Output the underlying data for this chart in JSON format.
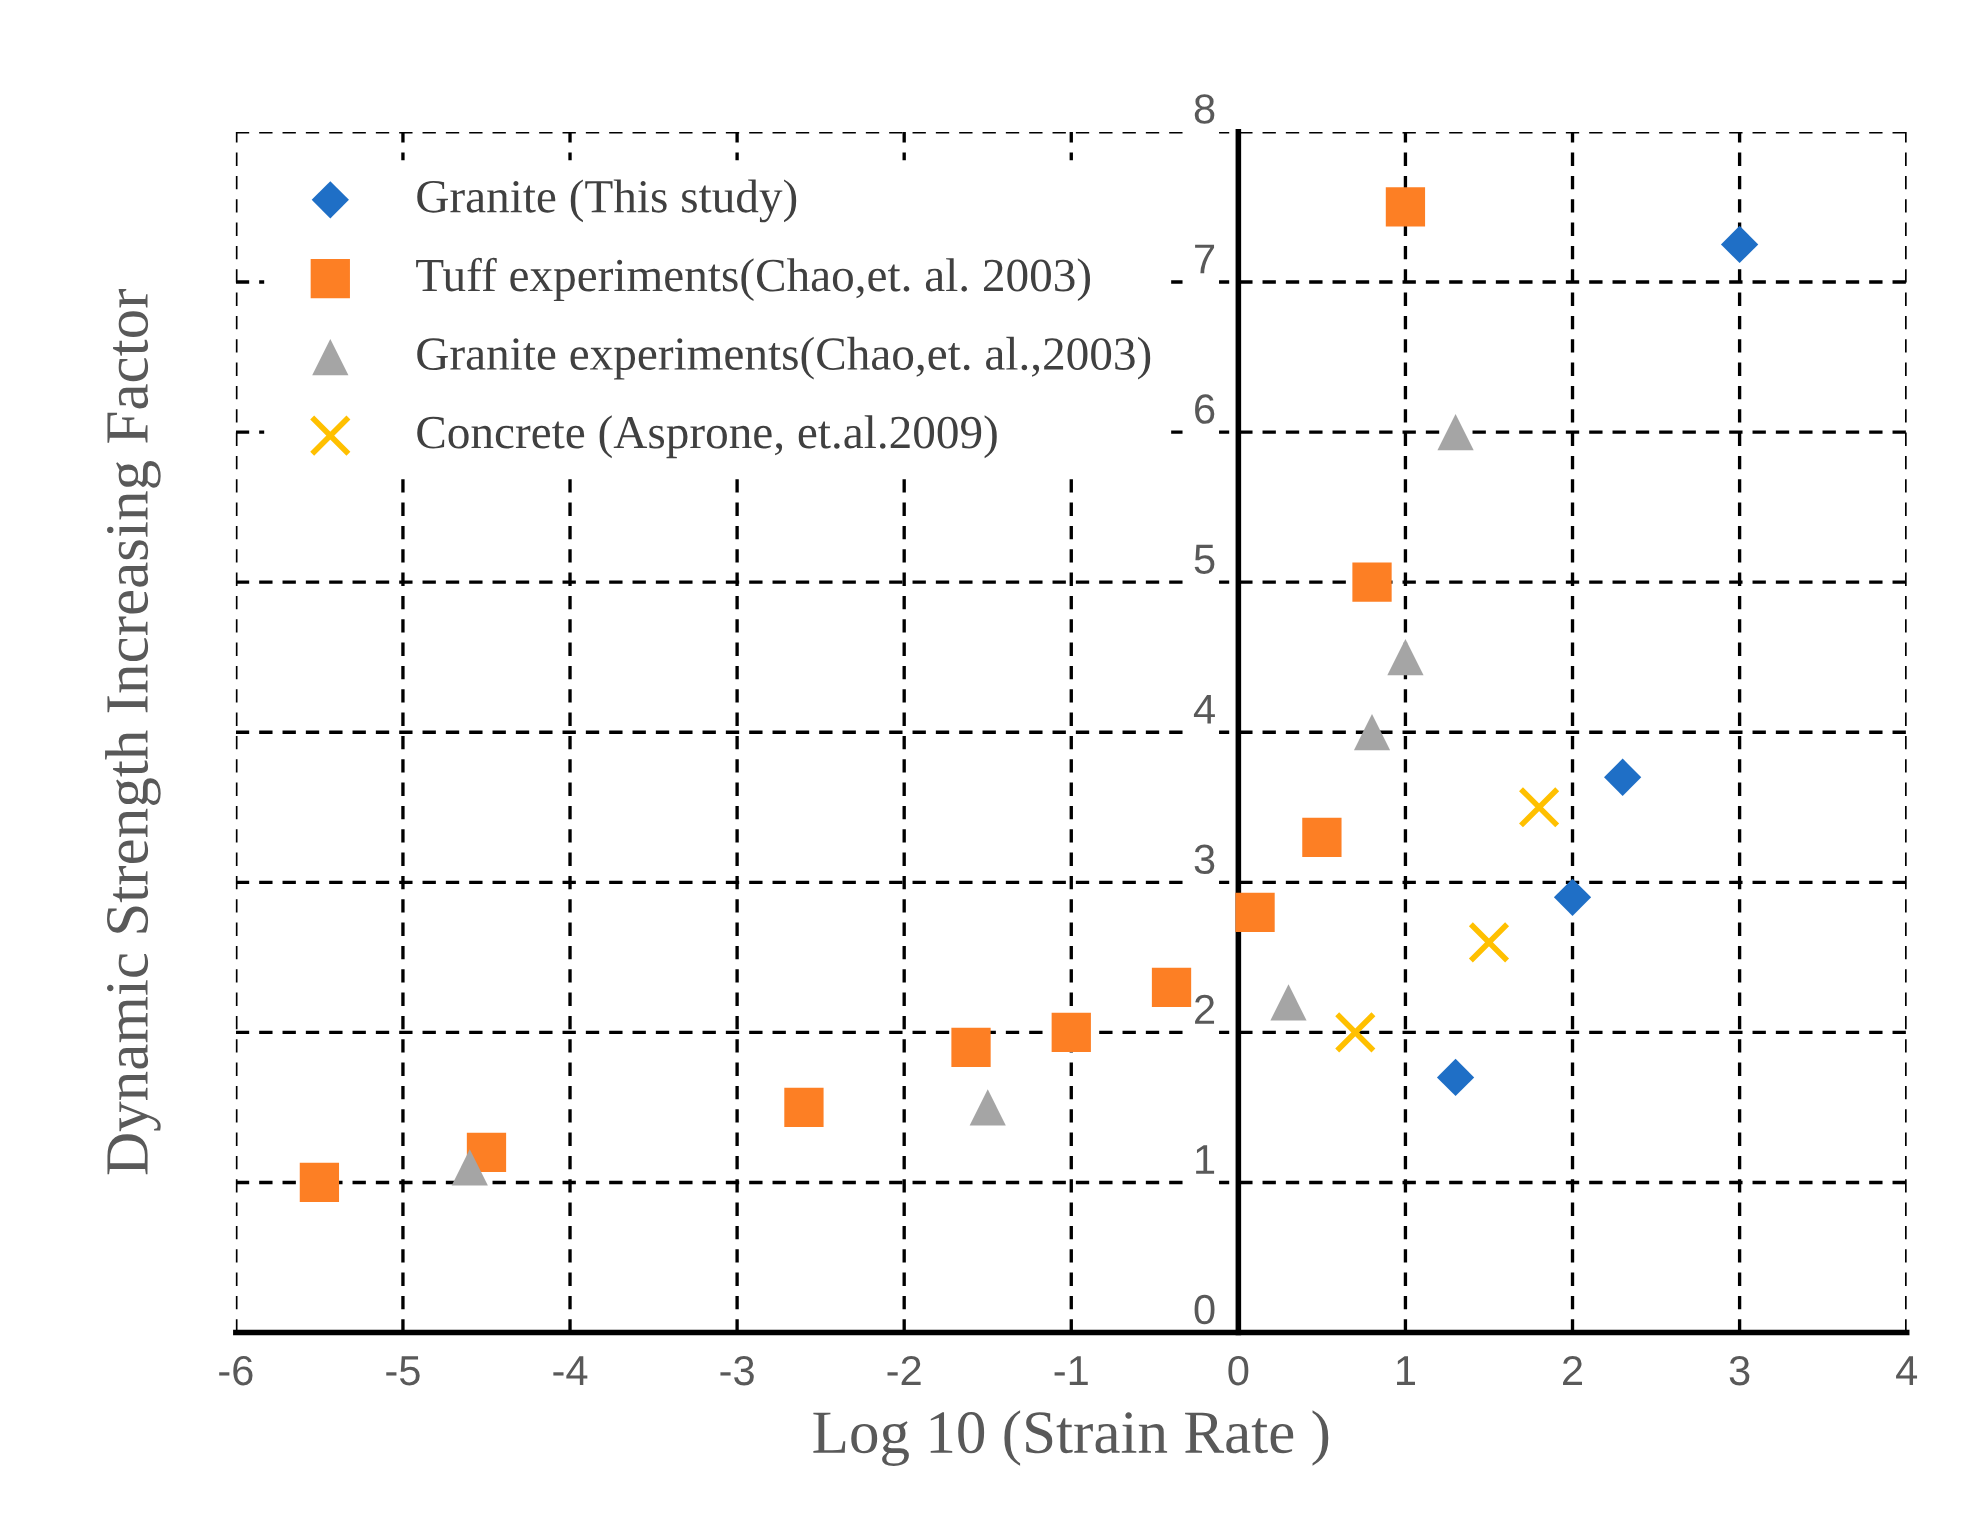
{
  "chart_data": {
    "type": "scatter",
    "xlabel": "Log 10 (Strain Rate )",
    "ylabel": "Dynamic Strength Increasing Factor",
    "xlim": [
      -6,
      4
    ],
    "xticks": [
      -6,
      -5,
      -4,
      -3,
      -2,
      -1,
      0,
      1,
      2,
      3,
      4
    ],
    "ylim": [
      0,
      8
    ],
    "yticks": [
      0,
      1,
      2,
      3,
      4,
      5,
      6,
      7,
      8
    ],
    "grid": true,
    "legend": "top left",
    "series": [
      {
        "name": "Granite (This study)",
        "color": "#1f6fc6",
        "marker": "diamond",
        "x": [
          3.0,
          2.3,
          2.0,
          1.3
        ],
        "values": [
          7.25,
          3.7,
          2.9,
          1.7
        ]
      },
      {
        "name": "Tuff experiments(Chao,et. al. 2003)",
        "color": "#fd7f24",
        "marker": "square",
        "x": [
          1.0,
          0.8,
          0.5,
          0.1,
          -0.4,
          -1.0,
          -1.6,
          -2.6,
          -4.5,
          -5.5
        ],
        "values": [
          7.5,
          5.0,
          3.3,
          2.8,
          2.3,
          2.0,
          1.9,
          1.5,
          1.2,
          1.0
        ]
      },
      {
        "name": "Granite experiments(Chao,et. al.,2003)",
        "color": "#a5a5a5",
        "marker": "triangle",
        "x": [
          1.3,
          1.0,
          0.8,
          0.3,
          -1.5,
          -4.6
        ],
        "values": [
          6.0,
          4.5,
          4.0,
          2.2,
          1.5,
          1.1
        ]
      },
      {
        "name": "Concrete (Asprone, et.al.2009)",
        "color": "#ffc000",
        "marker": "cross",
        "x": [
          1.8,
          1.5,
          0.7
        ],
        "values": [
          3.5,
          2.6,
          2.0
        ]
      }
    ]
  }
}
